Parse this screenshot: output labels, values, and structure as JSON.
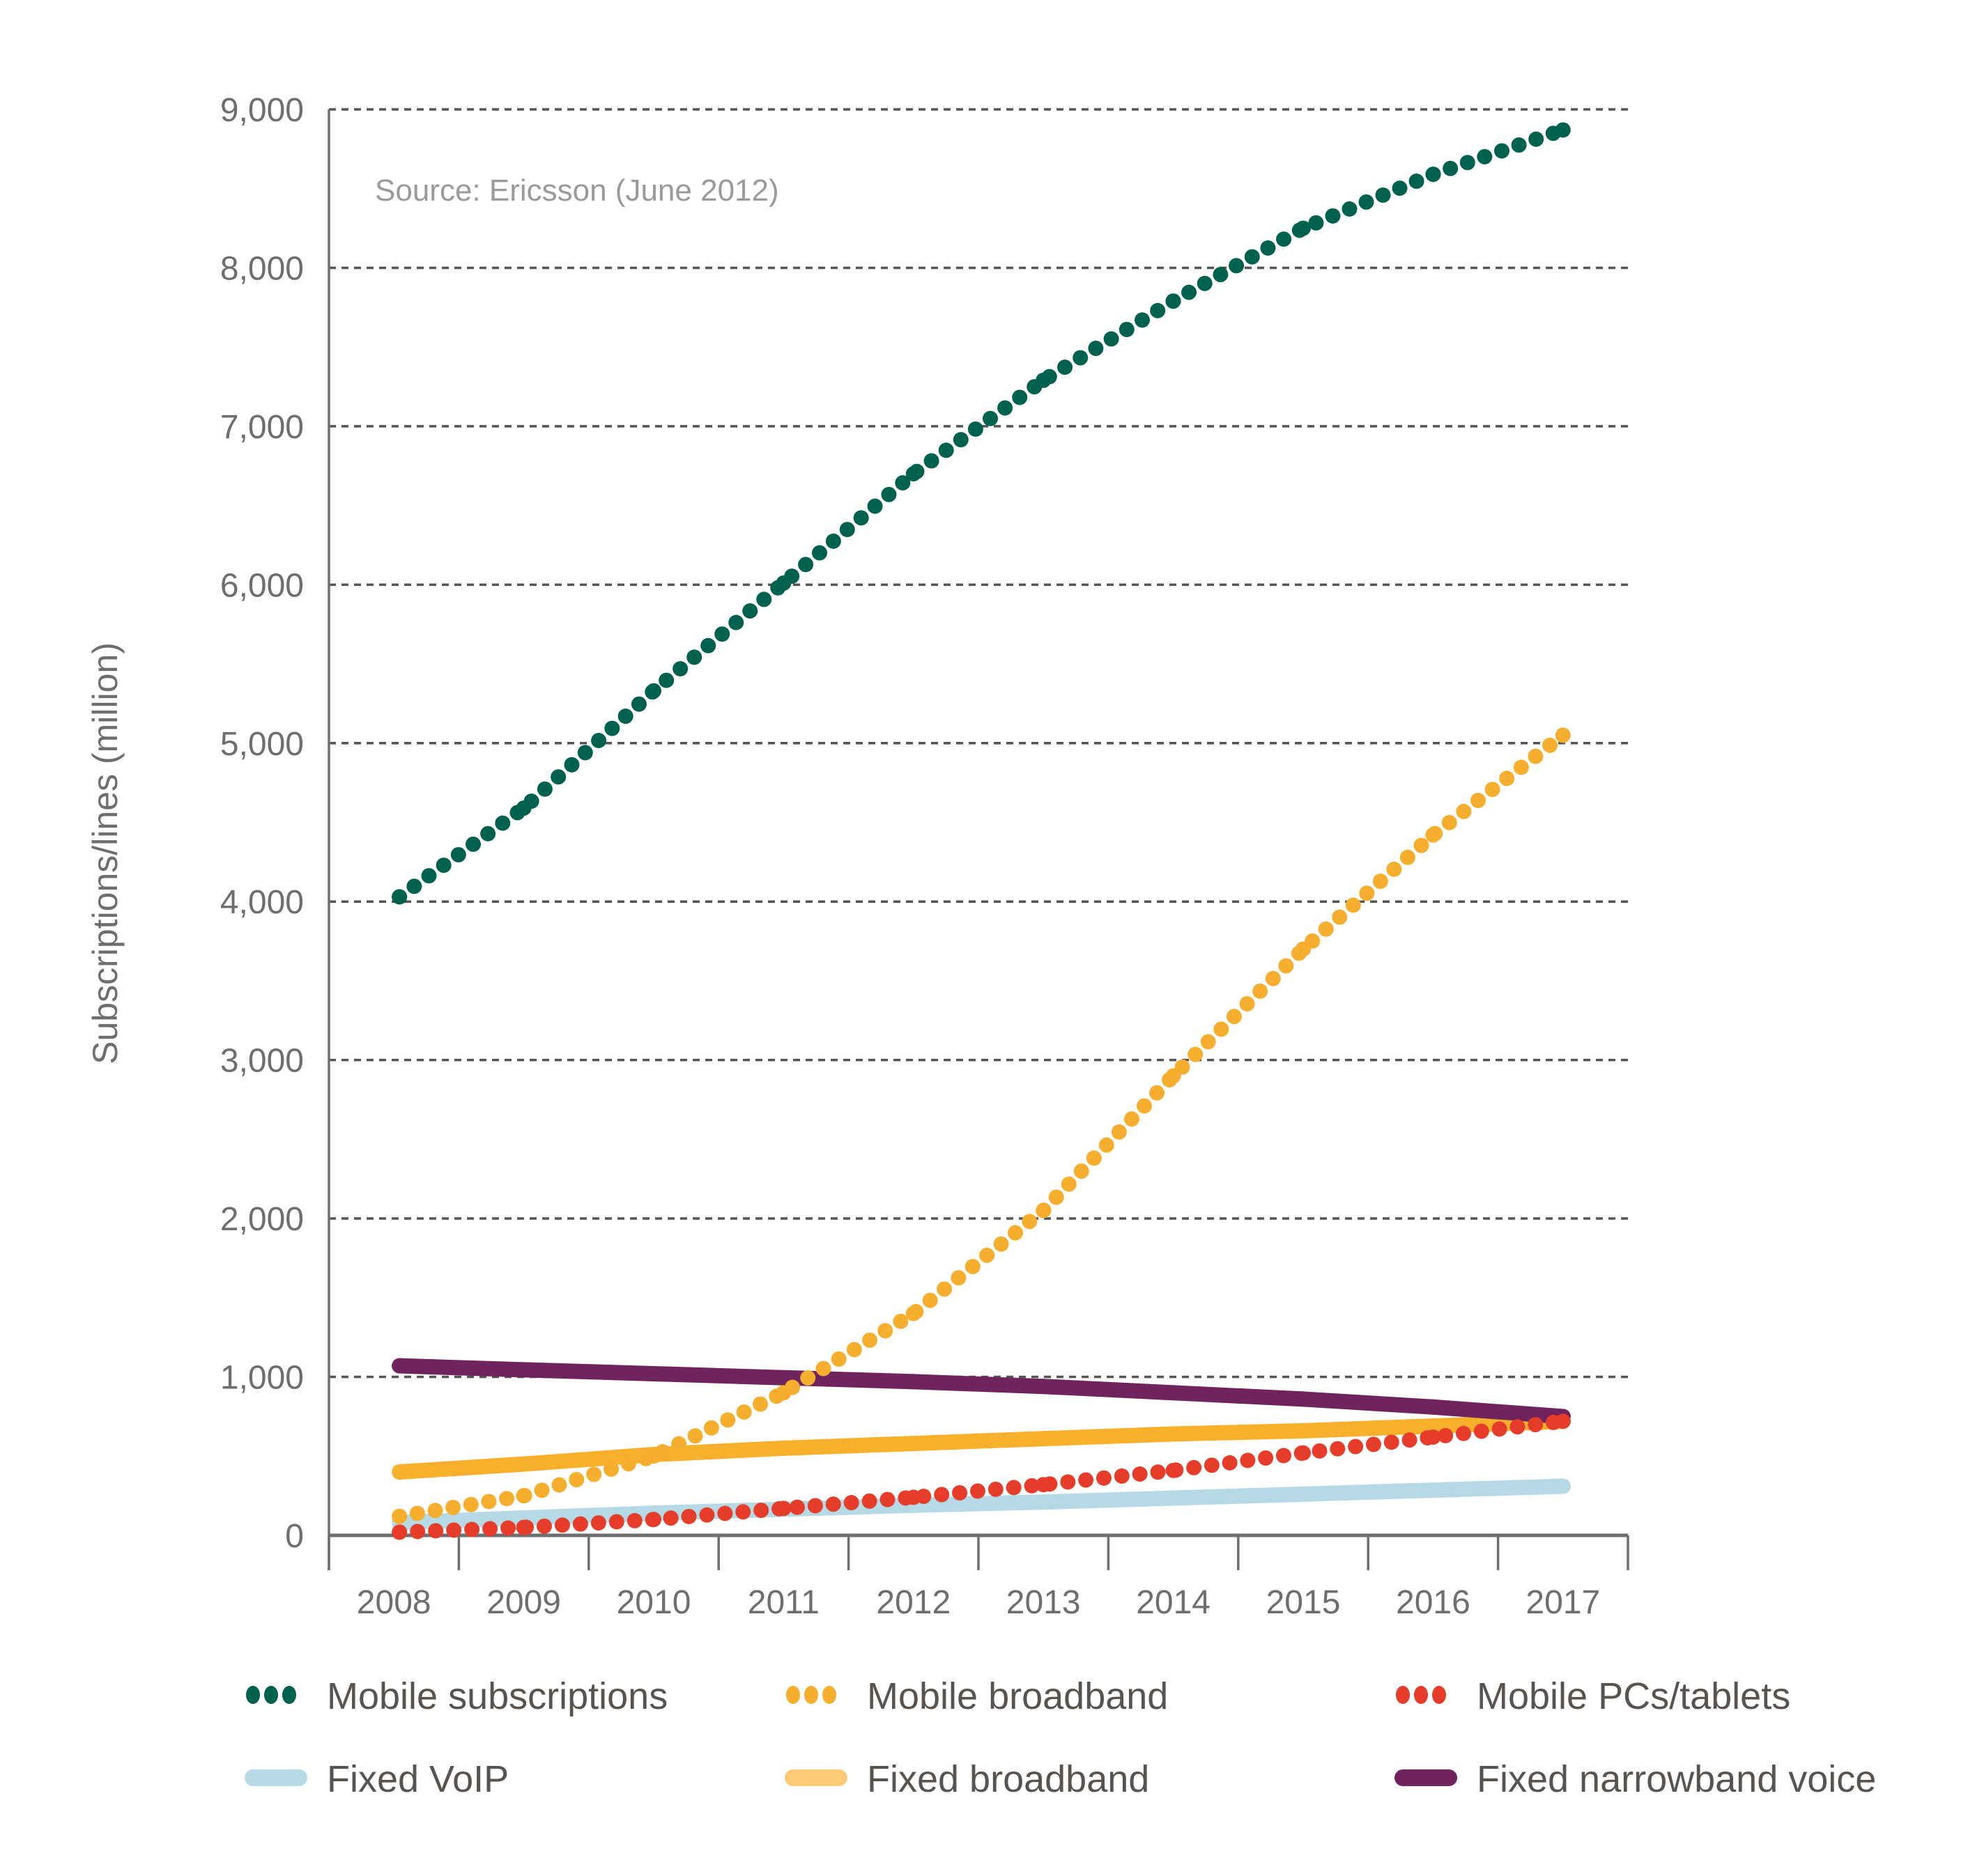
{
  "chart_data": {
    "type": "line",
    "title": "",
    "annotation": "Source: Ericsson (June 2012)",
    "xlabel": "",
    "ylabel": "Subscriptions/lines (million)",
    "categories": [
      "2008",
      "2009",
      "2010",
      "2011",
      "2012",
      "2013",
      "2014",
      "2015",
      "2016",
      "2017"
    ],
    "ylim": [
      0,
      9000
    ],
    "yticks": [
      "0",
      "1,000",
      "2,000",
      "3,000",
      "4,000",
      "5,000",
      "6,000",
      "7,000",
      "8,000",
      "9,000"
    ],
    "grid": "horizontal dashed",
    "legend_placement": "bottom",
    "series": [
      {
        "name": "Mobile subscriptions",
        "style": "dotted",
        "color": "#00614f",
        "values": [
          4030,
          4590,
          5330,
          6010,
          6700,
          7290,
          7790,
          8250,
          8590,
          8870
        ]
      },
      {
        "name": "Mobile broadband",
        "style": "dotted",
        "color": "#f5ae2d",
        "values": [
          120,
          250,
          500,
          900,
          1400,
          2050,
          2900,
          3700,
          4420,
          5050
        ]
      },
      {
        "name": "Mobile PCs/tablets",
        "style": "dotted",
        "color": "#e53d2a",
        "values": [
          20,
          50,
          100,
          170,
          240,
          320,
          410,
          520,
          620,
          720
        ]
      },
      {
        "name": "Fixed VoIP",
        "style": "solid",
        "color": "#b6d9e6",
        "values": [
          80,
          110,
          140,
          165,
          190,
          210,
          235,
          260,
          285,
          310
        ]
      },
      {
        "name": "Fixed broadband",
        "style": "solid",
        "color": "#f7b02c",
        "legend_color": "#fccb78",
        "values": [
          400,
          450,
          510,
          550,
          580,
          610,
          640,
          660,
          690,
          720
        ]
      },
      {
        "name": "Fixed narrowband voice",
        "style": "solid",
        "color": "#70245e",
        "values": [
          1070,
          1045,
          1020,
          995,
          970,
          940,
          900,
          860,
          810,
          750
        ]
      }
    ]
  }
}
